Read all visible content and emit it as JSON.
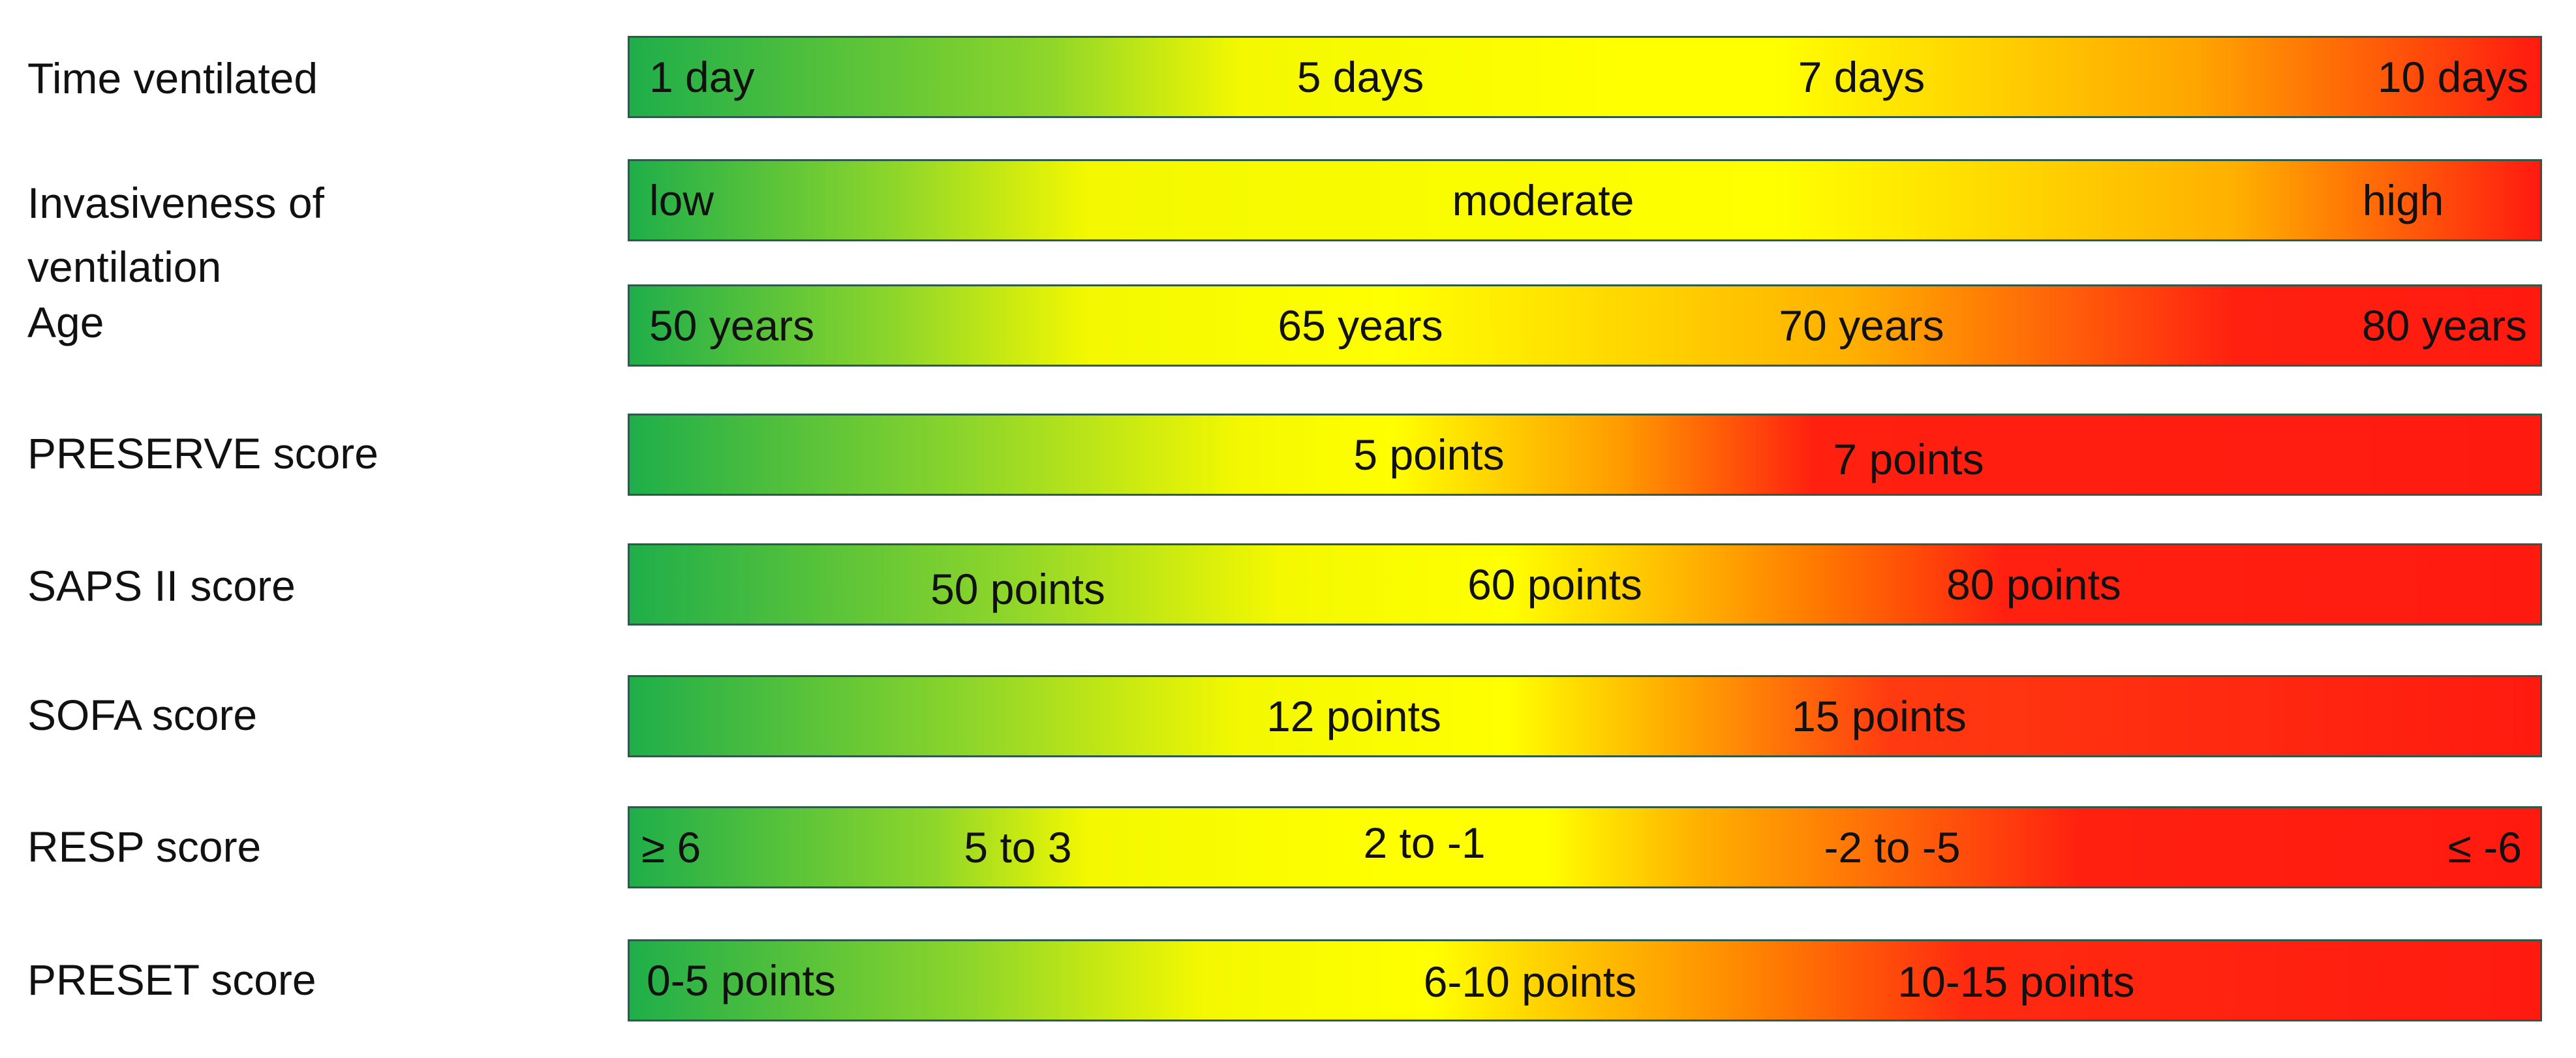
{
  "rows": [
    {
      "label": "Time ventilated",
      "ticks": [
        "1 day",
        "5 days",
        "7 days",
        "10 days"
      ]
    },
    {
      "label": "Invasiveness of ventilation",
      "ticks": [
        "low",
        "moderate",
        "high"
      ]
    },
    {
      "label": "Age",
      "ticks": [
        "50 years",
        "65 years",
        "70 years",
        "80 years"
      ]
    },
    {
      "label": "PRESERVE score",
      "ticks": [
        "5 points",
        "7 points"
      ]
    },
    {
      "label": "SAPS II score",
      "ticks": [
        "50 points",
        "60 points",
        "80 points"
      ]
    },
    {
      "label": "SOFA score",
      "ticks": [
        "12 points",
        "15 points"
      ]
    },
    {
      "label": "RESP score",
      "ticks": [
        "≥ 6",
        "5 to 3",
        "2 to -1",
        "-2 to -5",
        "≤ -6"
      ]
    },
    {
      "label": "PRESET score",
      "ticks": [
        "0-5 points",
        "6-10 points",
        "10-15 points"
      ]
    }
  ],
  "colors": {
    "green": "#1fae4a",
    "yellow": "#ffff00",
    "orange": "#ffa500",
    "red": "#ff1a10"
  }
}
